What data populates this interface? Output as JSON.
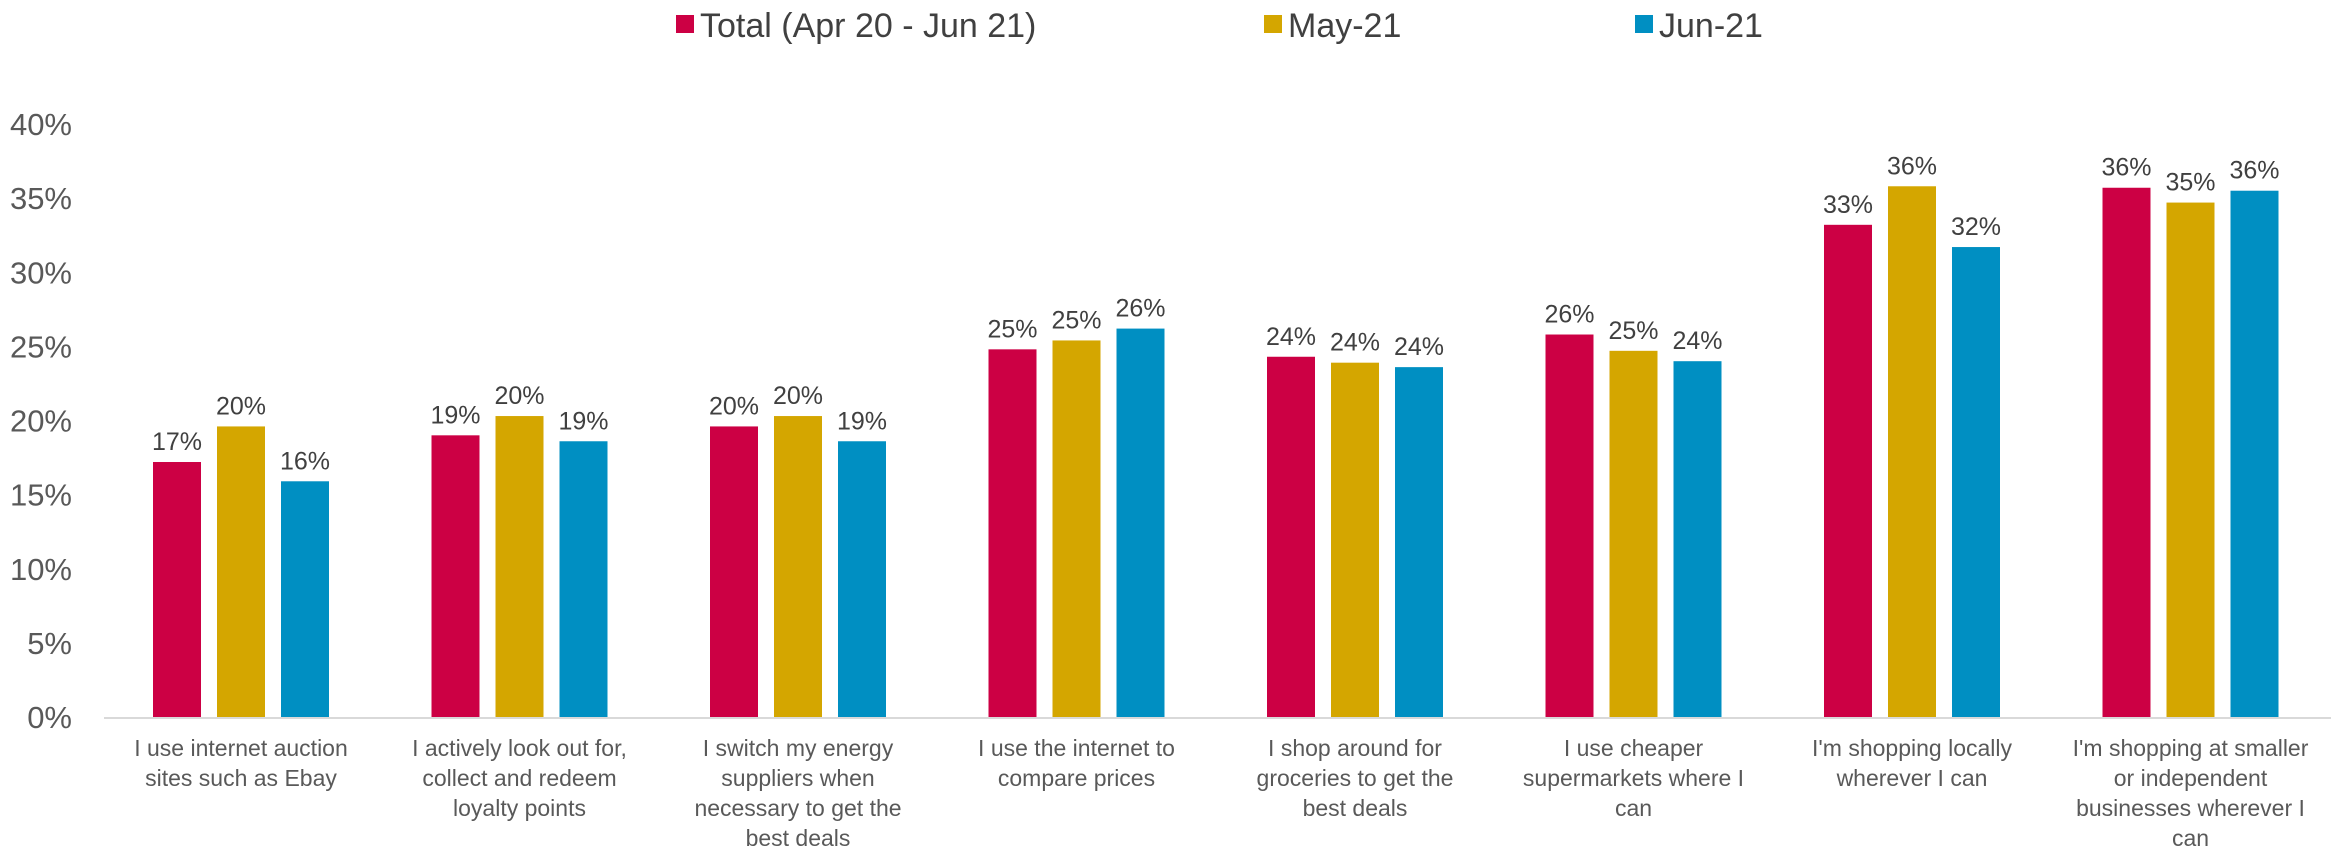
{
  "chart_data": {
    "type": "bar",
    "title": "",
    "xlabel": "",
    "ylabel": "",
    "ylim": [
      0,
      40
    ],
    "yticks": [
      "0%",
      "5%",
      "10%",
      "15%",
      "20%",
      "25%",
      "30%",
      "35%",
      "40%"
    ],
    "grid": false,
    "legend_position": "top",
    "categories": [
      [
        "I use internet auction",
        "sites such as Ebay"
      ],
      [
        "I actively look out for,",
        "collect and redeem",
        "loyalty points"
      ],
      [
        "I switch my energy",
        "suppliers when",
        "necessary to get the",
        "best deals"
      ],
      [
        "I use the internet to",
        "compare prices"
      ],
      [
        "I shop around for",
        "groceries to get the",
        "best deals"
      ],
      [
        "I use cheaper",
        "supermarkets where I",
        "can"
      ],
      [
        "I'm shopping locally",
        "wherever I can"
      ],
      [
        "I'm shopping at smaller",
        "or independent",
        "businesses wherever I",
        "can"
      ]
    ],
    "series": [
      {
        "name": "Total (Apr 20 - Jun 21)",
        "color": "#cc0044",
        "values": [
          17.2,
          19.0,
          19.6,
          24.8,
          24.3,
          25.8,
          33.2,
          35.7
        ],
        "labels": [
          "17%",
          "19%",
          "20%",
          "25%",
          "24%",
          "26%",
          "33%",
          "36%"
        ]
      },
      {
        "name": "May-21",
        "color": "#d4a600",
        "values": [
          19.6,
          20.3,
          20.3,
          25.4,
          23.9,
          24.7,
          35.8,
          34.7
        ],
        "labels": [
          "20%",
          "20%",
          "20%",
          "25%",
          "24%",
          "25%",
          "36%",
          "35%"
        ]
      },
      {
        "name": "Jun-21",
        "color": "#008fc2",
        "values": [
          15.9,
          18.6,
          18.6,
          26.2,
          23.6,
          24.0,
          31.7,
          35.5
        ],
        "labels": [
          "16%",
          "19%",
          "19%",
          "26%",
          "24%",
          "24%",
          "32%",
          "36%"
        ]
      }
    ]
  }
}
